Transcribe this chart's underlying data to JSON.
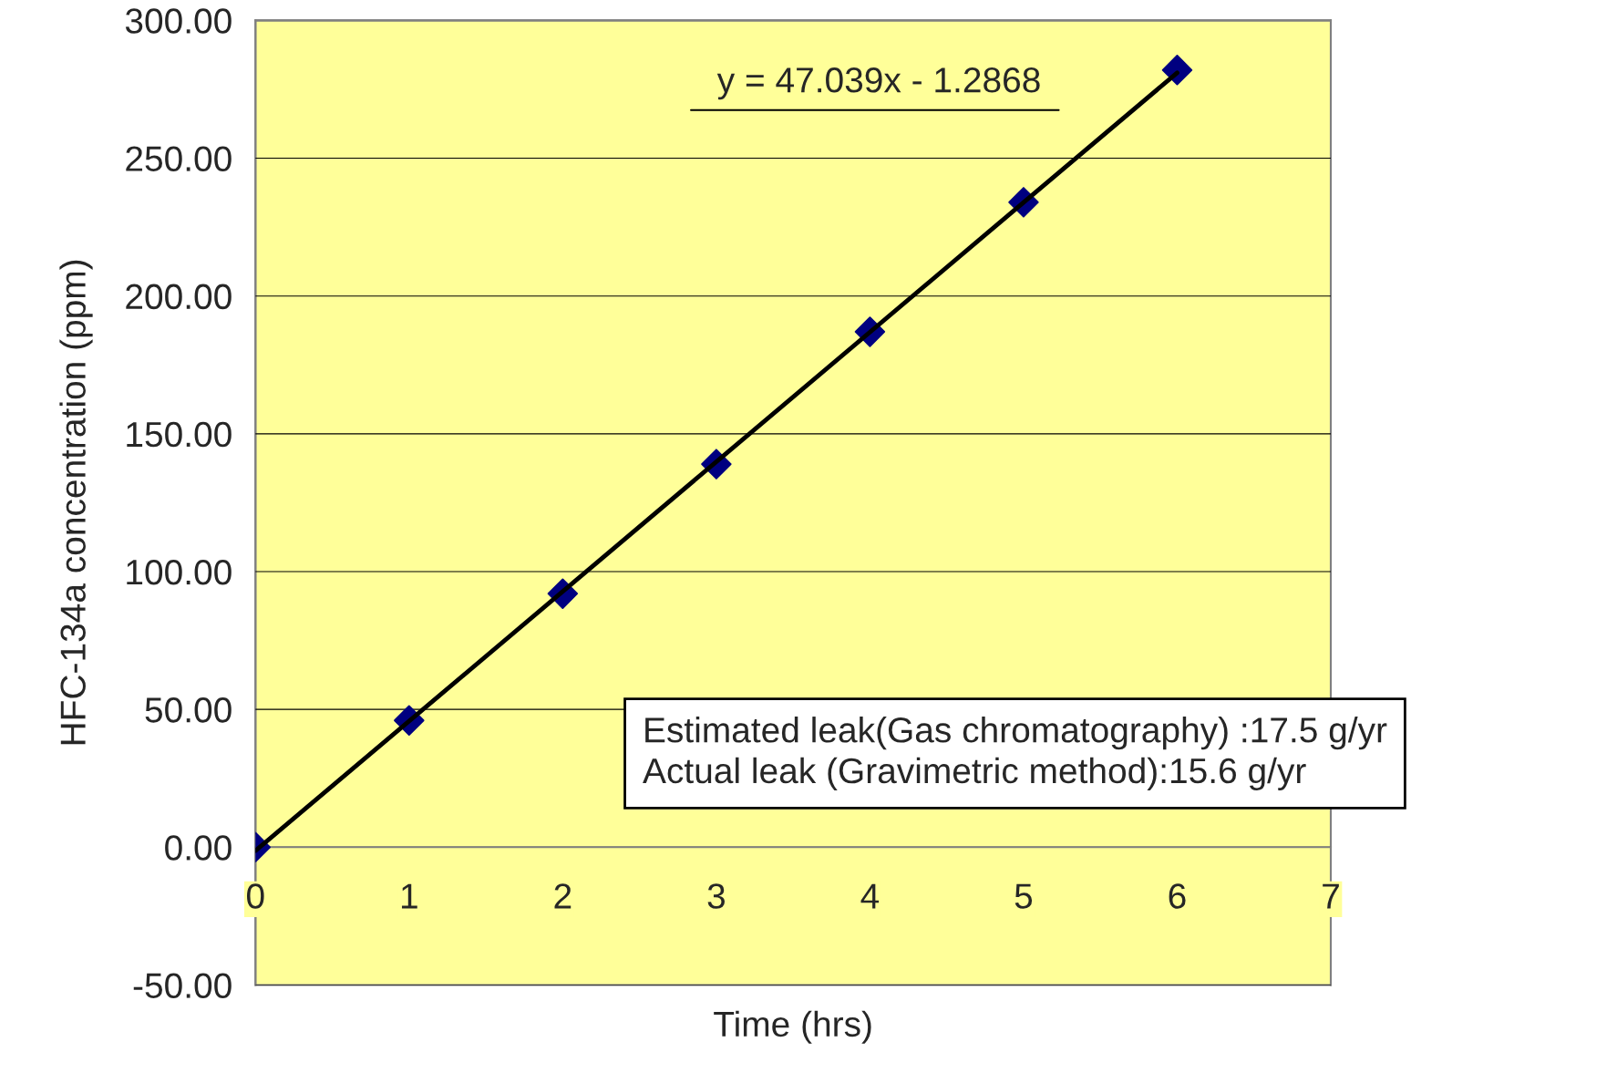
{
  "chart_data": {
    "type": "scatter",
    "xlabel": "Time (hrs)",
    "ylabel": "HFC-134a concentration (ppm)",
    "xlim": [
      0,
      7
    ],
    "xticks": [
      0,
      1,
      2,
      3,
      4,
      5,
      6,
      7
    ],
    "ylim": [
      -50,
      300
    ],
    "yticks": [
      {
        "value": -50,
        "label": "-50.00"
      },
      {
        "value": 0,
        "label": "0.00"
      },
      {
        "value": 50,
        "label": "50.00"
      },
      {
        "value": 100,
        "label": "100.00"
      },
      {
        "value": 150,
        "label": "150.00"
      },
      {
        "value": 200,
        "label": "200.00"
      },
      {
        "value": 250,
        "label": "250.00"
      },
      {
        "value": 300,
        "label": "300.00"
      }
    ],
    "grid": "y",
    "marker": "diamond",
    "series": [
      {
        "color": "#000080",
        "x": [
          0,
          1,
          2,
          3,
          4,
          5,
          6
        ],
        "values": [
          0,
          46,
          92,
          139,
          187,
          234,
          282
        ]
      },
      {
        "type": "line",
        "color": "#000000",
        "line_style": "solid",
        "marker": "none",
        "x": [
          0,
          6
        ],
        "values": [
          -1.3,
          281
        ]
      }
    ],
    "annotations": [
      "y = 47.039x - 1.2868",
      "Estimated leak(Gas chromatography) :17.5 g/yr",
      "Actual leak (Gravimetric method):15.6 g/yr"
    ]
  }
}
